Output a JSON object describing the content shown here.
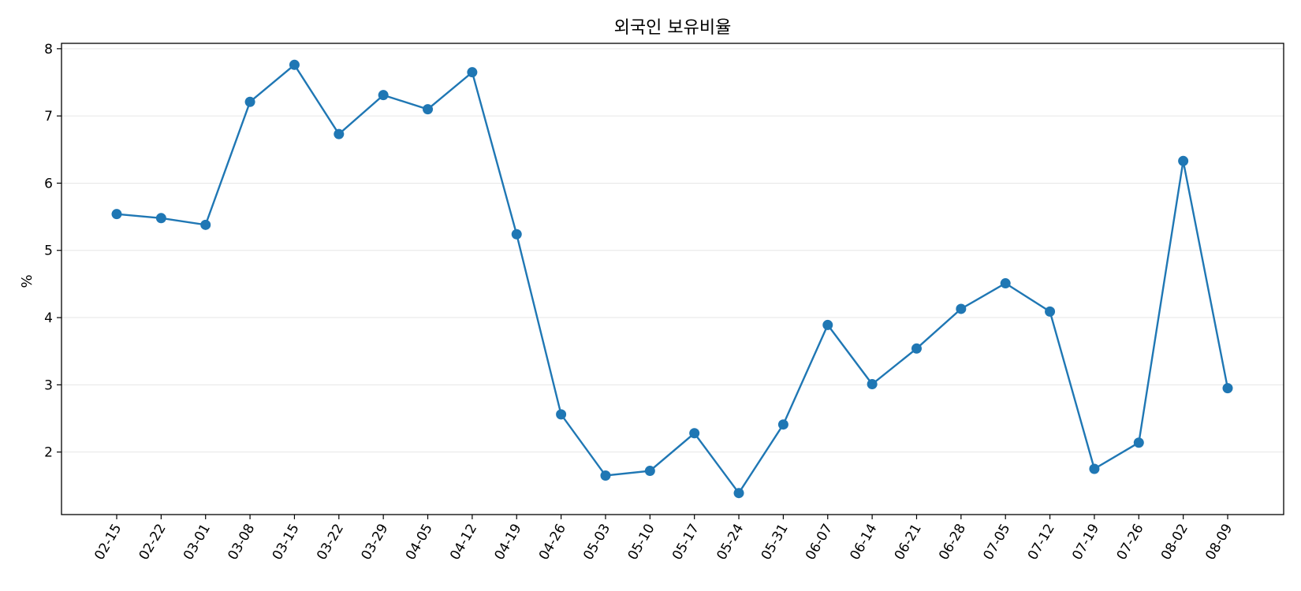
{
  "chart_data": {
    "type": "line",
    "title": "외국인 보유비율",
    "xlabel": "",
    "ylabel": "%",
    "categories": [
      "02-15",
      "02-22",
      "03-01",
      "03-08",
      "03-15",
      "03-22",
      "03-29",
      "04-05",
      "04-12",
      "04-19",
      "04-26",
      "05-03",
      "05-10",
      "05-17",
      "05-24",
      "05-31",
      "06-07",
      "06-14",
      "06-21",
      "06-28",
      "07-05",
      "07-12",
      "07-19",
      "07-26",
      "08-02",
      "08-09"
    ],
    "series": [
      {
        "values": [
          5.54,
          5.48,
          5.38,
          7.21,
          7.76,
          6.73,
          7.31,
          7.1,
          7.65,
          5.24,
          2.56,
          1.65,
          1.72,
          2.28,
          1.39,
          2.41,
          3.89,
          3.01,
          3.54,
          4.13,
          4.51,
          4.09,
          1.75,
          2.14,
          6.33,
          2.95
        ],
        "color": "#1f77b4",
        "marker": "circle"
      }
    ],
    "ylim": [
      1.07,
      8.08
    ],
    "yticks": [
      2,
      3,
      4,
      5,
      6,
      7,
      8
    ],
    "grid": "y-axis horizontal lines",
    "legend": "none"
  }
}
